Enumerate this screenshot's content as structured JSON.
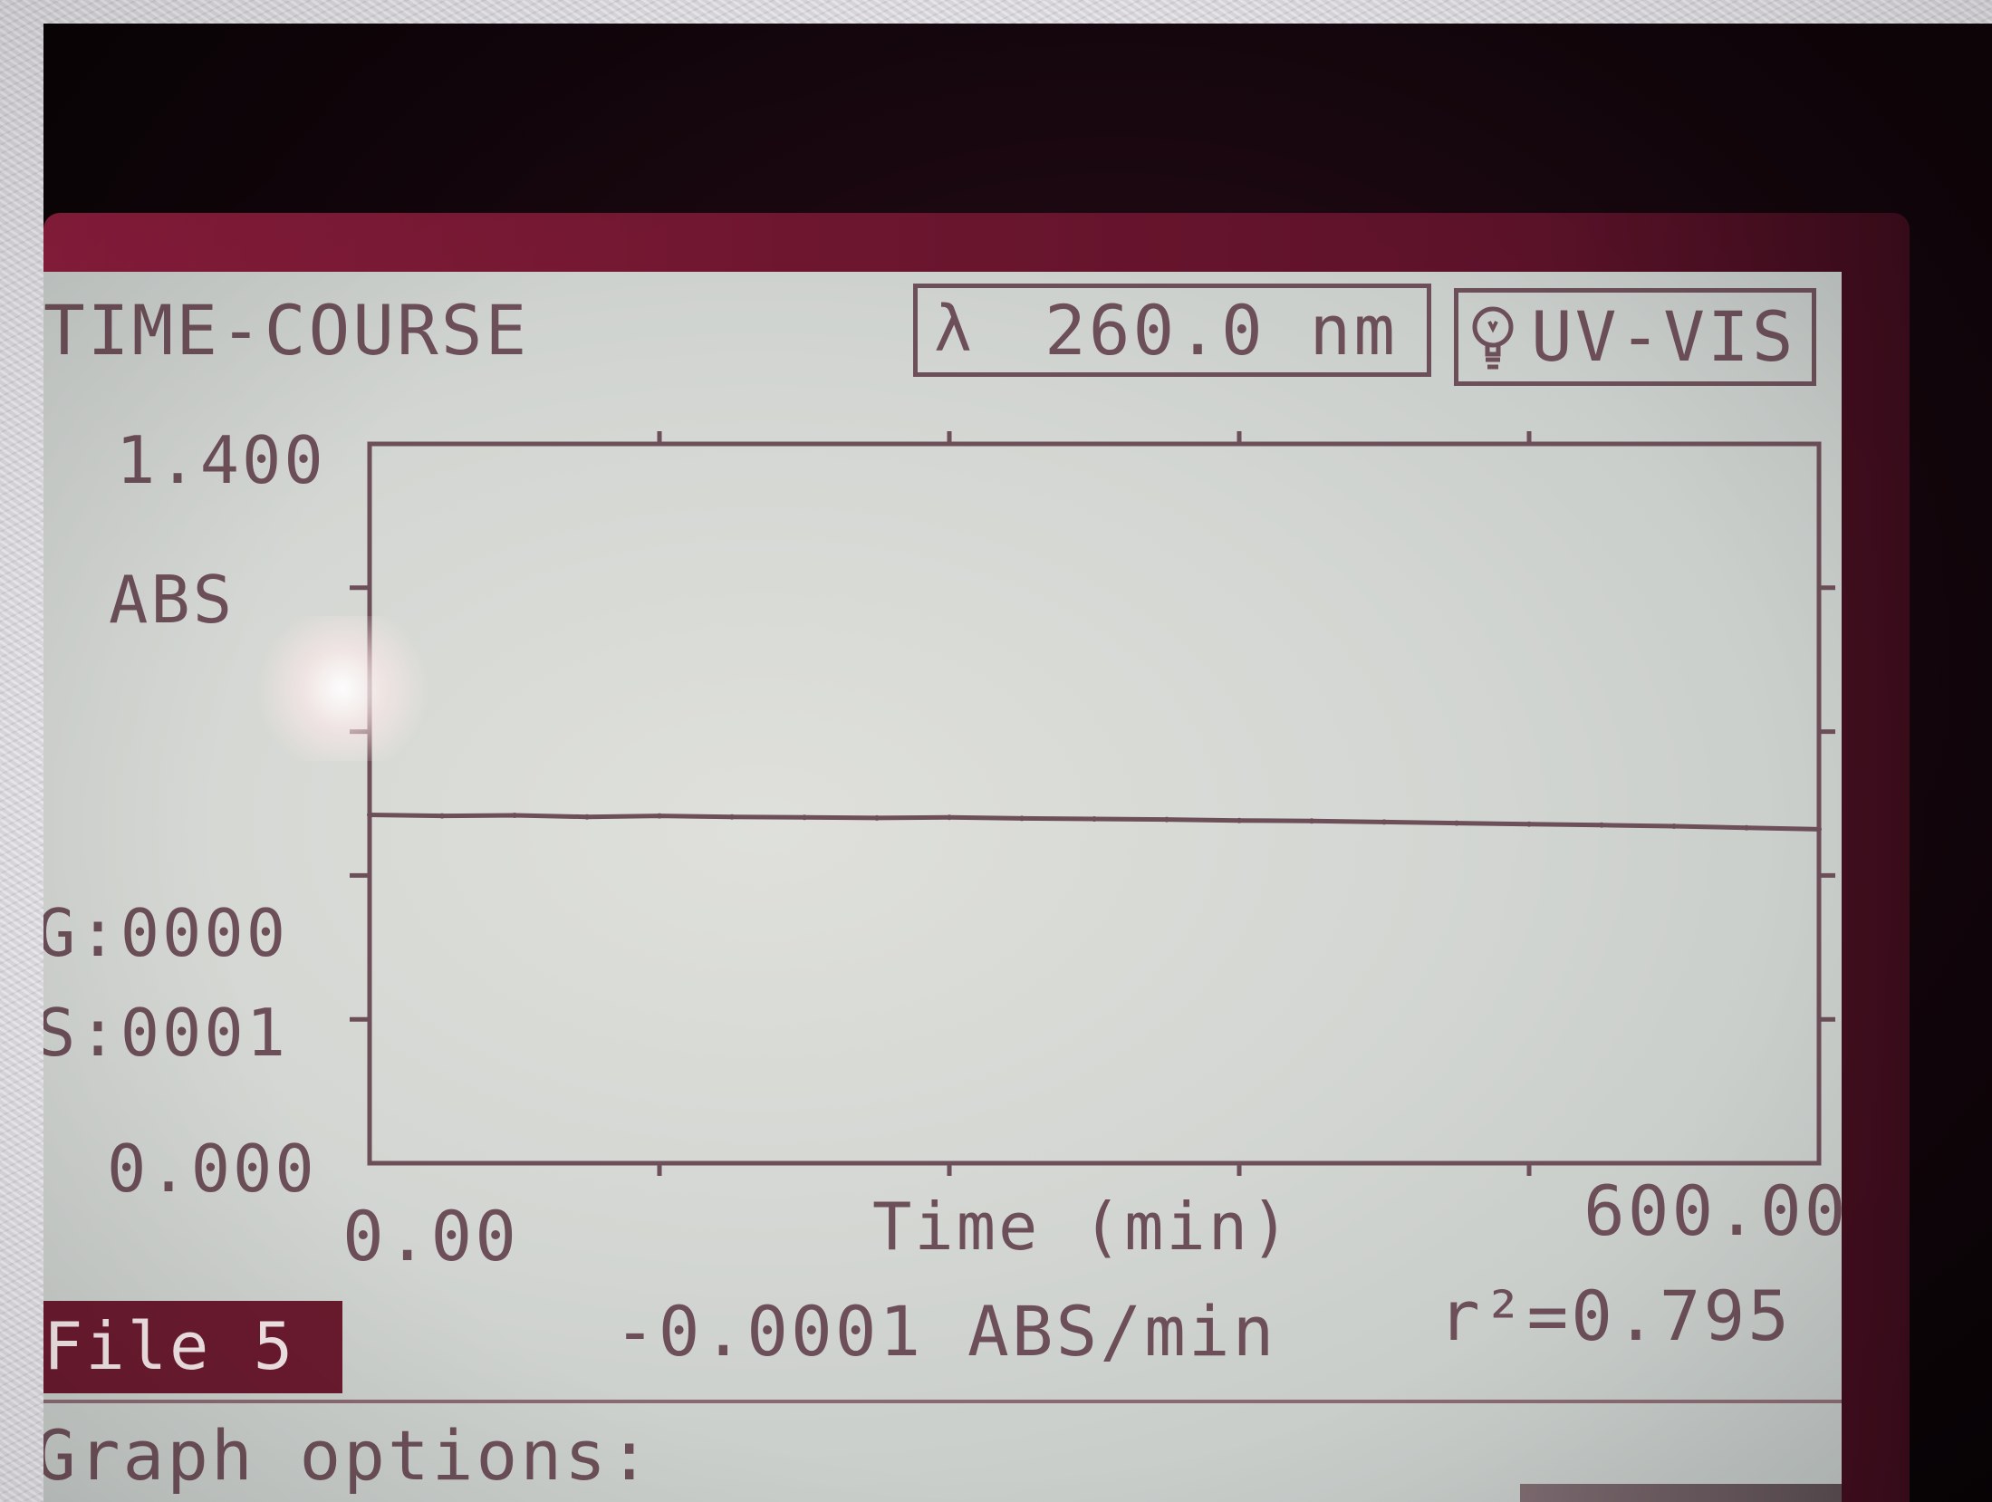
{
  "screen": {
    "title": "TIME-COURSE",
    "wavelength": {
      "symbol": "λ",
      "readout": "260.0 nm"
    },
    "mode": {
      "icon": "lamp-icon",
      "label": "UV-VIS"
    }
  },
  "readouts": {
    "gain": "G:0000",
    "scale": "S:0001"
  },
  "status": {
    "file_label": "File 5",
    "slope": "-0.0001 ABS/min",
    "r_squared": "r²=0.795"
  },
  "prompt": {
    "graph_options": "Graph options:"
  },
  "colors": {
    "screen_bg": "#d3d6d2",
    "lcd_ink": "#6c4f58",
    "file_badge": "#6a1a2e",
    "bezel": "#6e1630"
  },
  "chart_data": {
    "type": "line",
    "title": "",
    "xlabel": "Time (min)",
    "ylabel": "ABS",
    "xlim": [
      0,
      600
    ],
    "ylim": [
      0,
      1.4
    ],
    "x_tick_labels": [
      "0.00",
      "600.00"
    ],
    "y_tick_labels": [
      "1.400",
      "0.000"
    ],
    "grid": false,
    "series": [
      {
        "x": [
          0,
          30,
          60,
          90,
          120,
          150,
          180,
          210,
          240,
          270,
          300,
          330,
          360,
          390,
          420,
          450,
          480,
          510,
          540,
          570,
          600
        ],
        "y": [
          0.678,
          0.676,
          0.677,
          0.674,
          0.676,
          0.674,
          0.673,
          0.672,
          0.673,
          0.671,
          0.67,
          0.669,
          0.667,
          0.666,
          0.664,
          0.662,
          0.66,
          0.658,
          0.656,
          0.653,
          0.65
        ]
      }
    ]
  }
}
